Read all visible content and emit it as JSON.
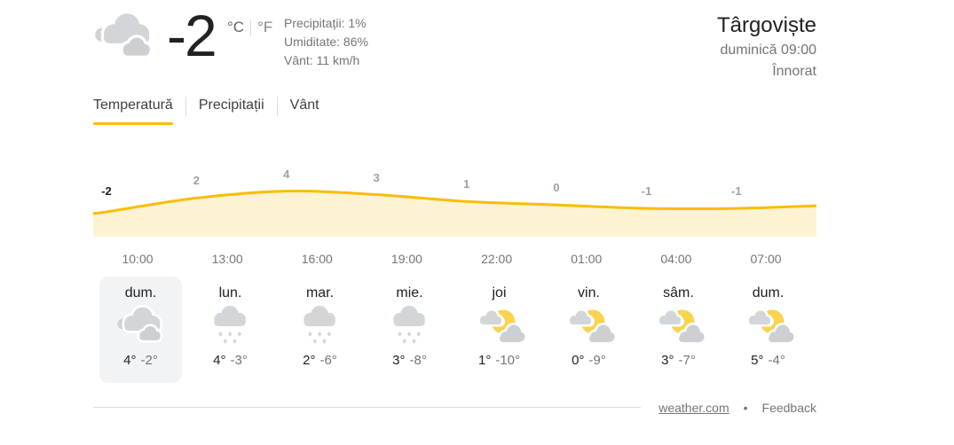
{
  "colors": {
    "accent_yellow": "#fbbc04",
    "chart_fill": "#fdf3d2",
    "cloud_gray": "#d3d6d9",
    "sun_yellow": "#fad34f",
    "text_primary": "#202124",
    "text_secondary": "#70757a"
  },
  "current": {
    "icon": "cloudy",
    "temperature": "-2",
    "unit_c": "°C",
    "unit_f": "°F",
    "details": [
      "Precipitații: 1%",
      "Umiditate: 86%",
      "Vânt: 11 km/h"
    ]
  },
  "header": {
    "city": "Târgoviște",
    "datetime": "duminică 09:00",
    "condition": "Înnorat"
  },
  "tabs": [
    {
      "label": "Temperatură",
      "active": true
    },
    {
      "label": "Precipitații",
      "active": false
    },
    {
      "label": "Vânt",
      "active": false
    }
  ],
  "chart_data": {
    "type": "area",
    "title": "Hourly temperature forecast",
    "x": [
      "10:00",
      "13:00",
      "16:00",
      "19:00",
      "22:00",
      "01:00",
      "04:00",
      "07:00"
    ],
    "values": [
      -2,
      2,
      4,
      3,
      1,
      0,
      -1,
      -1
    ],
    "unit": "°C",
    "current_index": 0,
    "line_color": "#fbbc04",
    "fill_color": "#fdf3d2",
    "grid": false,
    "legend": false,
    "ylim": [
      -4,
      6
    ]
  },
  "forecast": [
    {
      "day": "dum.",
      "icon": "cloudy",
      "high": "4°",
      "low": "-2°",
      "selected": true
    },
    {
      "day": "lun.",
      "icon": "snow",
      "high": "4°",
      "low": "-3°",
      "selected": false
    },
    {
      "day": "mar.",
      "icon": "snow",
      "high": "2°",
      "low": "-6°",
      "selected": false
    },
    {
      "day": "mie.",
      "icon": "snow",
      "high": "3°",
      "low": "-8°",
      "selected": false
    },
    {
      "day": "joi",
      "icon": "partly-cloudy",
      "high": "1°",
      "low": "-10°",
      "selected": false
    },
    {
      "day": "vin.",
      "icon": "partly-cloudy",
      "high": "0°",
      "low": "-9°",
      "selected": false
    },
    {
      "day": "sâm.",
      "icon": "partly-cloudy",
      "high": "3°",
      "low": "-7°",
      "selected": false
    },
    {
      "day": "dum.",
      "icon": "partly-cloudy",
      "high": "5°",
      "low": "-4°",
      "selected": false
    }
  ],
  "footer": {
    "source": "weather.com",
    "separator": "•",
    "feedback": "Feedback"
  }
}
